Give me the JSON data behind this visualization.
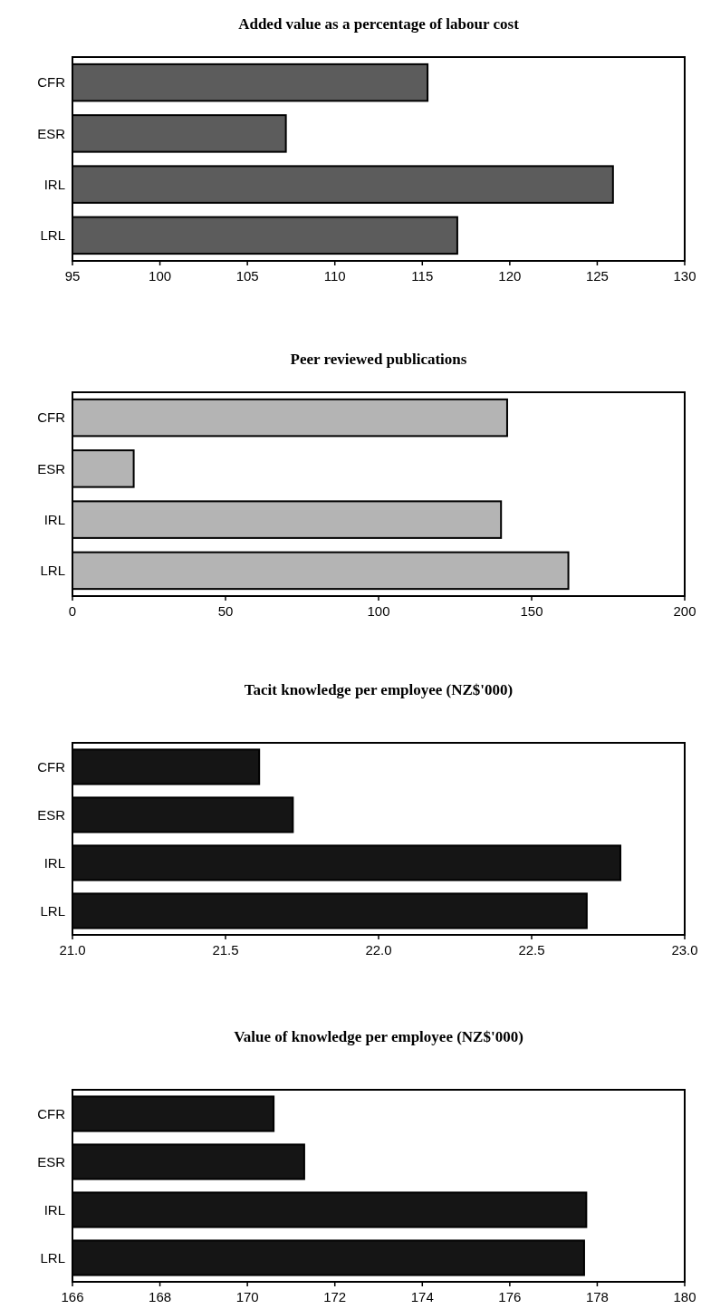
{
  "chart_data": [
    {
      "type": "bar",
      "orientation": "horizontal",
      "title": "Added value as a percentage of labour cost",
      "categories": [
        "CFR",
        "ESR",
        "IRL",
        "LRL"
      ],
      "values": [
        115.3,
        107.2,
        125.9,
        117.0
      ],
      "color": "#5c5c5c",
      "xlim": [
        95,
        130
      ],
      "xticks": [
        95,
        100,
        105,
        110,
        115,
        120,
        125,
        130
      ],
      "grid": false
    },
    {
      "type": "bar",
      "orientation": "horizontal",
      "title": "Peer reviewed publications",
      "categories": [
        "CFR",
        "ESR",
        "IRL",
        "LRL"
      ],
      "values": [
        142,
        20,
        140,
        162
      ],
      "color": "#b4b4b4",
      "xlim": [
        0,
        200
      ],
      "xticks": [
        0,
        50,
        100,
        150,
        200
      ],
      "grid": false
    },
    {
      "type": "bar",
      "orientation": "horizontal",
      "title": "Tacit knowledge per employee (NZ$'000)",
      "categories": [
        "CFR",
        "ESR",
        "IRL",
        "LRL"
      ],
      "values": [
        21.61,
        21.72,
        22.79,
        22.68
      ],
      "color": "#151515",
      "xlim": [
        21,
        23
      ],
      "xticks": [
        {
          "value": 21,
          "label": "21.0"
        },
        {
          "value": 21.5,
          "label": "21.5"
        },
        {
          "value": 22,
          "label": "22.0"
        },
        {
          "value": 22.5,
          "label": "22.5"
        },
        {
          "value": 23,
          "label": "23.0"
        }
      ],
      "grid": false
    },
    {
      "type": "bar",
      "orientation": "horizontal",
      "title": "Value of knowledge per employee (NZ$'000)",
      "categories": [
        "CFR",
        "ESR",
        "IRL",
        "LRL"
      ],
      "values": [
        170.6,
        171.3,
        177.75,
        177.7
      ],
      "color": "#151515",
      "xlim": [
        166,
        180
      ],
      "xticks": [
        166,
        168,
        170,
        172,
        174,
        176,
        178,
        180
      ],
      "grid": false
    }
  ]
}
